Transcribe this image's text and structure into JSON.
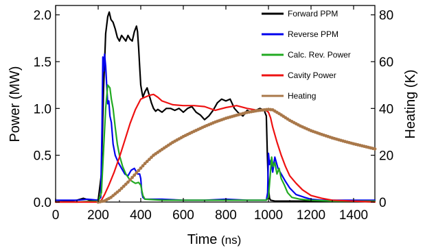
{
  "chart_data": {
    "type": "line",
    "xlabel_main": "Time",
    "xlabel_unit": "(ns)",
    "ylabel_left": "Power (MW)",
    "ylabel_right": "Heating (K)",
    "xlim": [
      0,
      1500
    ],
    "ylim_left": [
      0,
      2.1
    ],
    "ylim_right": [
      0,
      84
    ],
    "x_ticks": [
      "0",
      "200",
      "400",
      "600",
      "800",
      "1000",
      "1200",
      "1400"
    ],
    "y_left_ticks": [
      "0.0",
      "0.5",
      "1.0",
      "1.5",
      "2.0"
    ],
    "y_right_ticks": [
      "0",
      "20",
      "40",
      "60",
      "80"
    ],
    "grid": false,
    "legend_position": "top-right",
    "series": [
      {
        "name": "Forward PPM",
        "color": "#000000",
        "axis": "left",
        "x": [
          0,
          60,
          100,
          130,
          160,
          200,
          215,
          225,
          235,
          245,
          252,
          260,
          270,
          280,
          290,
          300,
          310,
          320,
          330,
          340,
          350,
          360,
          370,
          380,
          385,
          390,
          395,
          400,
          405,
          410,
          420,
          430,
          440,
          450,
          460,
          470,
          480,
          500,
          520,
          540,
          560,
          580,
          600,
          620,
          640,
          660,
          680,
          700,
          720,
          740,
          760,
          780,
          800,
          820,
          840,
          860,
          880,
          900,
          920,
          940,
          960,
          980,
          990,
          995,
          1000,
          1005,
          1010,
          1030,
          1100,
          1200,
          1300,
          1400,
          1500
        ],
        "y": [
          0.0,
          0.01,
          0.02,
          0.04,
          0.02,
          0.02,
          0.3,
          1.2,
          1.8,
          1.98,
          2.03,
          1.95,
          1.92,
          1.85,
          1.76,
          1.72,
          1.78,
          1.75,
          1.72,
          1.78,
          1.74,
          1.72,
          1.82,
          1.88,
          1.82,
          1.65,
          1.45,
          1.25,
          1.18,
          1.12,
          1.18,
          1.22,
          1.14,
          1.06,
          1.0,
          0.97,
          0.99,
          0.96,
          1.0,
          1.0,
          0.98,
          1.0,
          0.96,
          1.0,
          1.02,
          0.96,
          0.93,
          0.88,
          0.92,
          0.98,
          1.06,
          1.1,
          1.08,
          1.1,
          1.0,
          0.95,
          0.92,
          0.98,
          0.96,
          0.98,
          1.0,
          0.98,
          0.92,
          0.5,
          0.15,
          0.04,
          0.02,
          0.01,
          0.01,
          0.01,
          0.01,
          0.01,
          0.01
        ]
      },
      {
        "name": "Reverse PPM",
        "color": "#0000ee",
        "axis": "left",
        "x": [
          0,
          100,
          150,
          200,
          212,
          218,
          222,
          226,
          230,
          235,
          240,
          245,
          250,
          255,
          262,
          270,
          280,
          295,
          310,
          325,
          340,
          355,
          370,
          385,
          395,
          400,
          405,
          410,
          420,
          500,
          600,
          700,
          800,
          900,
          990,
          996,
          1000,
          1005,
          1012,
          1020,
          1030,
          1045,
          1060,
          1080,
          1100,
          1130,
          1170,
          1200,
          1250,
          1300,
          1400,
          1500
        ],
        "y": [
          0.02,
          0.02,
          0.03,
          0.02,
          0.05,
          0.8,
          1.55,
          1.4,
          1.58,
          1.45,
          1.25,
          1.05,
          1.08,
          0.92,
          0.85,
          0.62,
          0.5,
          0.42,
          0.36,
          0.3,
          0.28,
          0.34,
          0.36,
          0.3,
          0.3,
          0.25,
          0.1,
          0.05,
          0.03,
          0.03,
          0.02,
          0.02,
          0.03,
          0.02,
          0.02,
          0.1,
          0.52,
          0.4,
          0.45,
          0.32,
          0.48,
          0.36,
          0.3,
          0.22,
          0.15,
          0.08,
          0.05,
          0.03,
          0.02,
          0.02,
          0.02,
          0.02
        ]
      },
      {
        "name": "Calc. Rev. Power",
        "color": "#22aa22",
        "axis": "left",
        "x": [
          0,
          100,
          200,
          215,
          225,
          235,
          245,
          255,
          262,
          270,
          280,
          290,
          300,
          315,
          330,
          345,
          360,
          375,
          390,
          400,
          410,
          420,
          500,
          600,
          700,
          800,
          900,
          990,
          1000,
          1008,
          1015,
          1022,
          1030,
          1040,
          1050,
          1060,
          1075,
          1090,
          1110,
          1150,
          1200,
          1300,
          1400,
          1500
        ],
        "y": [
          0.0,
          0.0,
          0.01,
          0.1,
          0.55,
          1.0,
          1.25,
          1.22,
          1.1,
          1.0,
          0.8,
          0.62,
          0.5,
          0.38,
          0.3,
          0.25,
          0.22,
          0.2,
          0.21,
          0.18,
          0.07,
          0.03,
          0.02,
          0.02,
          0.02,
          0.02,
          0.02,
          0.02,
          0.05,
          0.28,
          0.48,
          0.38,
          0.42,
          0.3,
          0.36,
          0.25,
          0.18,
          0.1,
          0.05,
          0.03,
          0.02,
          0.01,
          0.01,
          0.01
        ]
      },
      {
        "name": "Cavity Power",
        "color": "#ee1111",
        "axis": "left",
        "x": [
          0,
          200,
          215,
          230,
          250,
          275,
          300,
          325,
          350,
          375,
          400,
          420,
          440,
          460,
          480,
          500,
          550,
          600,
          650,
          700,
          750,
          800,
          850,
          900,
          950,
          980,
          1000,
          1010,
          1020,
          1040,
          1060,
          1080,
          1100,
          1130,
          1160,
          1200,
          1250,
          1300,
          1400,
          1500
        ],
        "y": [
          0.0,
          0.0,
          0.02,
          0.08,
          0.18,
          0.32,
          0.48,
          0.66,
          0.84,
          0.99,
          1.1,
          1.12,
          1.14,
          1.15,
          1.12,
          1.08,
          1.04,
          1.03,
          1.03,
          1.02,
          0.98,
          1.01,
          1.03,
          1.0,
          0.98,
          0.99,
          0.96,
          0.9,
          0.8,
          0.64,
          0.5,
          0.38,
          0.28,
          0.2,
          0.13,
          0.07,
          0.04,
          0.02,
          0.01,
          0.0
        ]
      },
      {
        "name": "Heating",
        "color": "#a9784a",
        "axis": "right",
        "x": [
          200,
          230,
          260,
          300,
          340,
          380,
          420,
          460,
          500,
          550,
          600,
          650,
          700,
          750,
          800,
          850,
          900,
          950,
          1000,
          1020,
          1050,
          1100,
          1150,
          1200,
          1250,
          1300,
          1350,
          1400,
          1450,
          1500
        ],
        "y": [
          0.0,
          0.5,
          2.0,
          5.0,
          8.5,
          12.5,
          16.5,
          20.0,
          22.5,
          25.5,
          28.0,
          30.2,
          32.3,
          34.2,
          35.8,
          37.1,
          38.3,
          39.1,
          39.6,
          39.4,
          37.8,
          34.9,
          32.5,
          30.5,
          28.9,
          27.4,
          26.1,
          24.9,
          23.8,
          22.7
        ]
      }
    ]
  }
}
